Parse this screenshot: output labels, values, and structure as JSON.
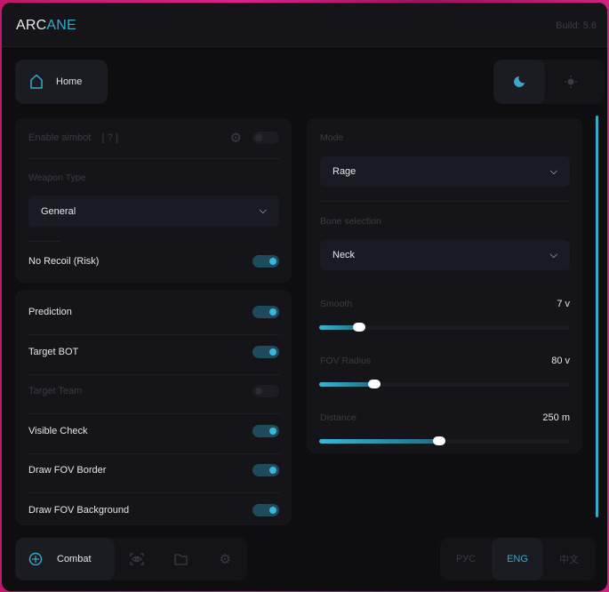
{
  "header": {
    "logo_a": "ARC",
    "logo_b": "ANE",
    "build": "Build: 5.6"
  },
  "top": {
    "home_label": "Home",
    "theme": {
      "active": "dark"
    }
  },
  "aim_card": {
    "enable_aimbot": "Enable aimbot",
    "help": "[ ? ]",
    "enable_aimbot_on": false,
    "weapon_type_label": "Weapon Type",
    "weapon_type": "General",
    "no_recoil": "No Recoil (Risk)",
    "no_recoil_on": true
  },
  "toggles": [
    {
      "label": "Prediction",
      "on": true,
      "disabled": false
    },
    {
      "label": "Target BOT",
      "on": true,
      "disabled": false
    },
    {
      "label": "Target Team",
      "on": false,
      "disabled": true
    },
    {
      "label": "Visible Check",
      "on": true,
      "disabled": false
    },
    {
      "label": "Draw FOV Border",
      "on": true,
      "disabled": false
    },
    {
      "label": "Draw FOV Background",
      "on": true,
      "disabled": false
    }
  ],
  "right": {
    "mode_label": "Mode",
    "mode": "Rage",
    "bone_label": "Bone selection",
    "bone": "Neck",
    "sliders": [
      {
        "label": "Smooth",
        "value": "7 v",
        "fraction": 0.16
      },
      {
        "label": "FOV Radius",
        "value": "80 v",
        "fraction": 0.22
      },
      {
        "label": "Distance",
        "value": "250 m",
        "fraction": 0.48
      }
    ]
  },
  "nav": {
    "active_label": "Combat",
    "items": [
      "combat",
      "visuals",
      "files",
      "settings"
    ]
  },
  "lang": {
    "items": [
      "РУС",
      "ENG",
      "中文"
    ],
    "active": "ENG"
  },
  "colors": {
    "accent": "#3aa9c9"
  }
}
